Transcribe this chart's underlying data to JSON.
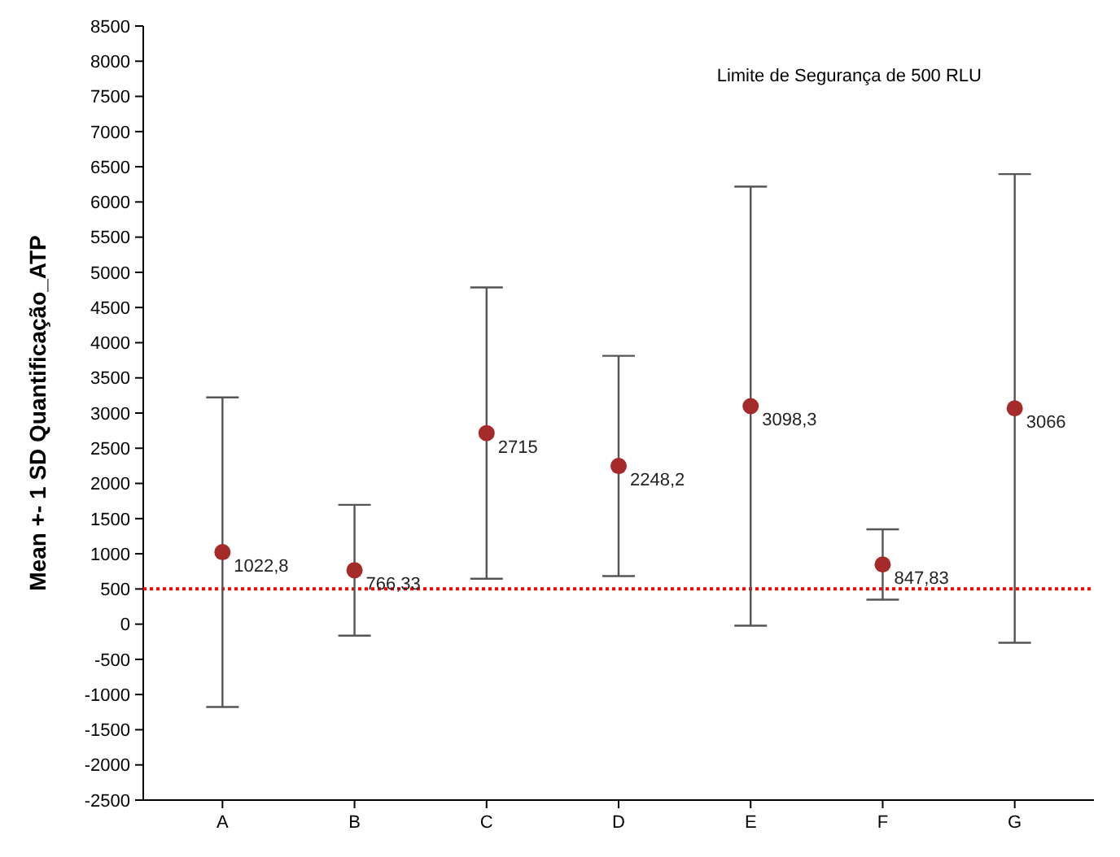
{
  "chart_data": {
    "type": "scatter",
    "ylabel": "Mean +- 1 SD Quantificação_ATP",
    "categories": [
      "A",
      "B",
      "C",
      "D",
      "E",
      "F",
      "G"
    ],
    "series": [
      {
        "color": "#a52a2a",
        "values": [
          1022.8,
          766.33,
          2715,
          2248.2,
          3098.3,
          847.83,
          3066
        ],
        "errors": [
          2200,
          930,
          2070,
          1565,
          3120,
          500,
          3330
        ],
        "value_labels": [
          "1022,8",
          "766,33",
          "2715",
          "2248,2",
          "3098,3",
          "847,83",
          "3066"
        ]
      }
    ],
    "ylim": [
      -2500,
      8500
    ],
    "yticks": [
      -2500,
      -2000,
      -1500,
      -1000,
      -500,
      0,
      500,
      1000,
      1500,
      2000,
      2500,
      3000,
      3500,
      4000,
      4500,
      5000,
      5500,
      6000,
      6500,
      7000,
      7500,
      8000,
      8500
    ],
    "marker": "circle",
    "grid": false,
    "annotations": [
      "Limite de Segurança de 500 RLU"
    ],
    "ref_lines": [
      {
        "axis": "y",
        "value": 500,
        "color": "#ff0000",
        "line_style": "dotted"
      }
    ]
  }
}
